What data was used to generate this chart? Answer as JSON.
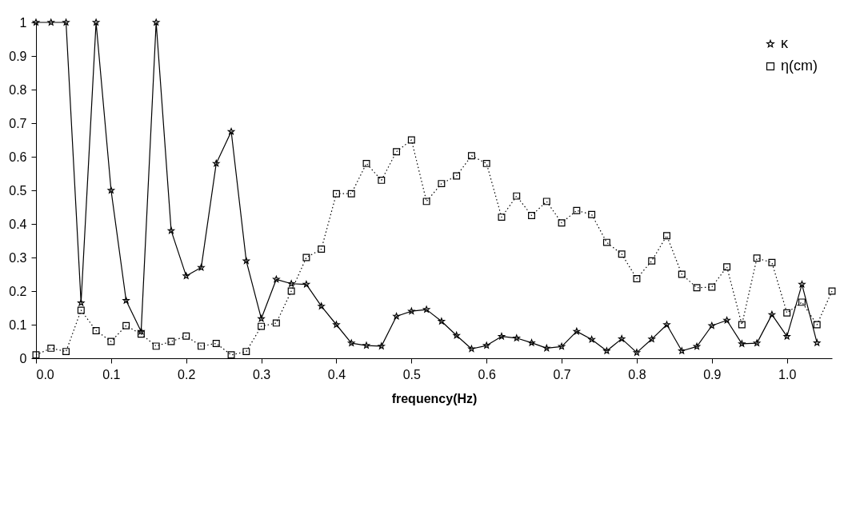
{
  "chart_data": {
    "type": "line",
    "xlabel": "frequency(Hz)",
    "x": [
      0,
      0.02,
      0.04,
      0.06,
      0.08,
      0.1,
      0.12,
      0.14,
      0.16,
      0.18,
      0.2,
      0.22,
      0.24,
      0.26,
      0.28,
      0.3,
      0.32,
      0.34,
      0.36,
      0.38,
      0.4,
      0.42,
      0.44,
      0.46,
      0.48,
      0.5,
      0.52,
      0.54,
      0.56,
      0.58,
      0.6,
      0.62,
      0.64,
      0.66,
      0.68,
      0.7,
      0.72,
      0.74,
      0.76,
      0.78,
      0.8,
      0.82,
      0.84,
      0.86,
      0.88,
      0.9,
      0.92,
      0.94,
      0.96,
      0.98,
      1.0,
      1.02,
      1.04,
      1.06
    ],
    "series": [
      {
        "name": "κ",
        "color": "#000000",
        "marker": "star",
        "line_style": "solid",
        "values": [
          1,
          1,
          1,
          0.165,
          1,
          0.5,
          0.172,
          0.08,
          1,
          0.38,
          0.245,
          0.27,
          0.58,
          0.675,
          0.29,
          0.118,
          0.235,
          0.222,
          0.22,
          0.155,
          0.1,
          0.045,
          0.038,
          0.036,
          0.125,
          0.14,
          0.145,
          0.11,
          0.068,
          0.028,
          0.038,
          0.065,
          0.06,
          0.046,
          0.03,
          0.035,
          0.08,
          0.056,
          0.022,
          0.058,
          0.017,
          0.057,
          0.1,
          0.022,
          0.035,
          0.097,
          0.113,
          0.043,
          0.045,
          0.13,
          0.065,
          0.22,
          0.046,
          null
        ]
      },
      {
        "name": "η(cm)",
        "color": "#000000",
        "marker": "square",
        "line_style": "dotted",
        "values": [
          0.01,
          0.03,
          0.02,
          0.143,
          0.082,
          0.05,
          0.097,
          0.072,
          0.036,
          0.05,
          0.066,
          0.036,
          0.044,
          0.01,
          0.02,
          0.095,
          0.105,
          0.2,
          0.3,
          0.325,
          0.49,
          0.49,
          0.58,
          0.53,
          0.615,
          0.65,
          0.467,
          0.52,
          0.543,
          0.603,
          0.58,
          0.42,
          0.483,
          0.425,
          0.467,
          0.403,
          0.44,
          0.428,
          0.345,
          0.31,
          0.237,
          0.29,
          0.365,
          0.25,
          0.21,
          0.212,
          0.272,
          0.1,
          0.298,
          0.285,
          0.135,
          0.167,
          0.1,
          0.2
        ]
      }
    ],
    "xlim": [
      0,
      1.06
    ],
    "xticks": [
      {
        "value": 0,
        "label": "0.0"
      },
      0.1,
      0.2,
      0.3,
      0.4,
      0.5,
      0.6,
      0.7,
      0.8,
      0.9,
      {
        "value": 1.0,
        "label": "1.0"
      }
    ],
    "ylim": [
      0,
      1
    ],
    "yticks": [
      0,
      0.1,
      0.2,
      0.3,
      0.4,
      0.5,
      0.6,
      0.7,
      0.8,
      0.9,
      1
    ],
    "grid": false,
    "legend": "top right"
  }
}
